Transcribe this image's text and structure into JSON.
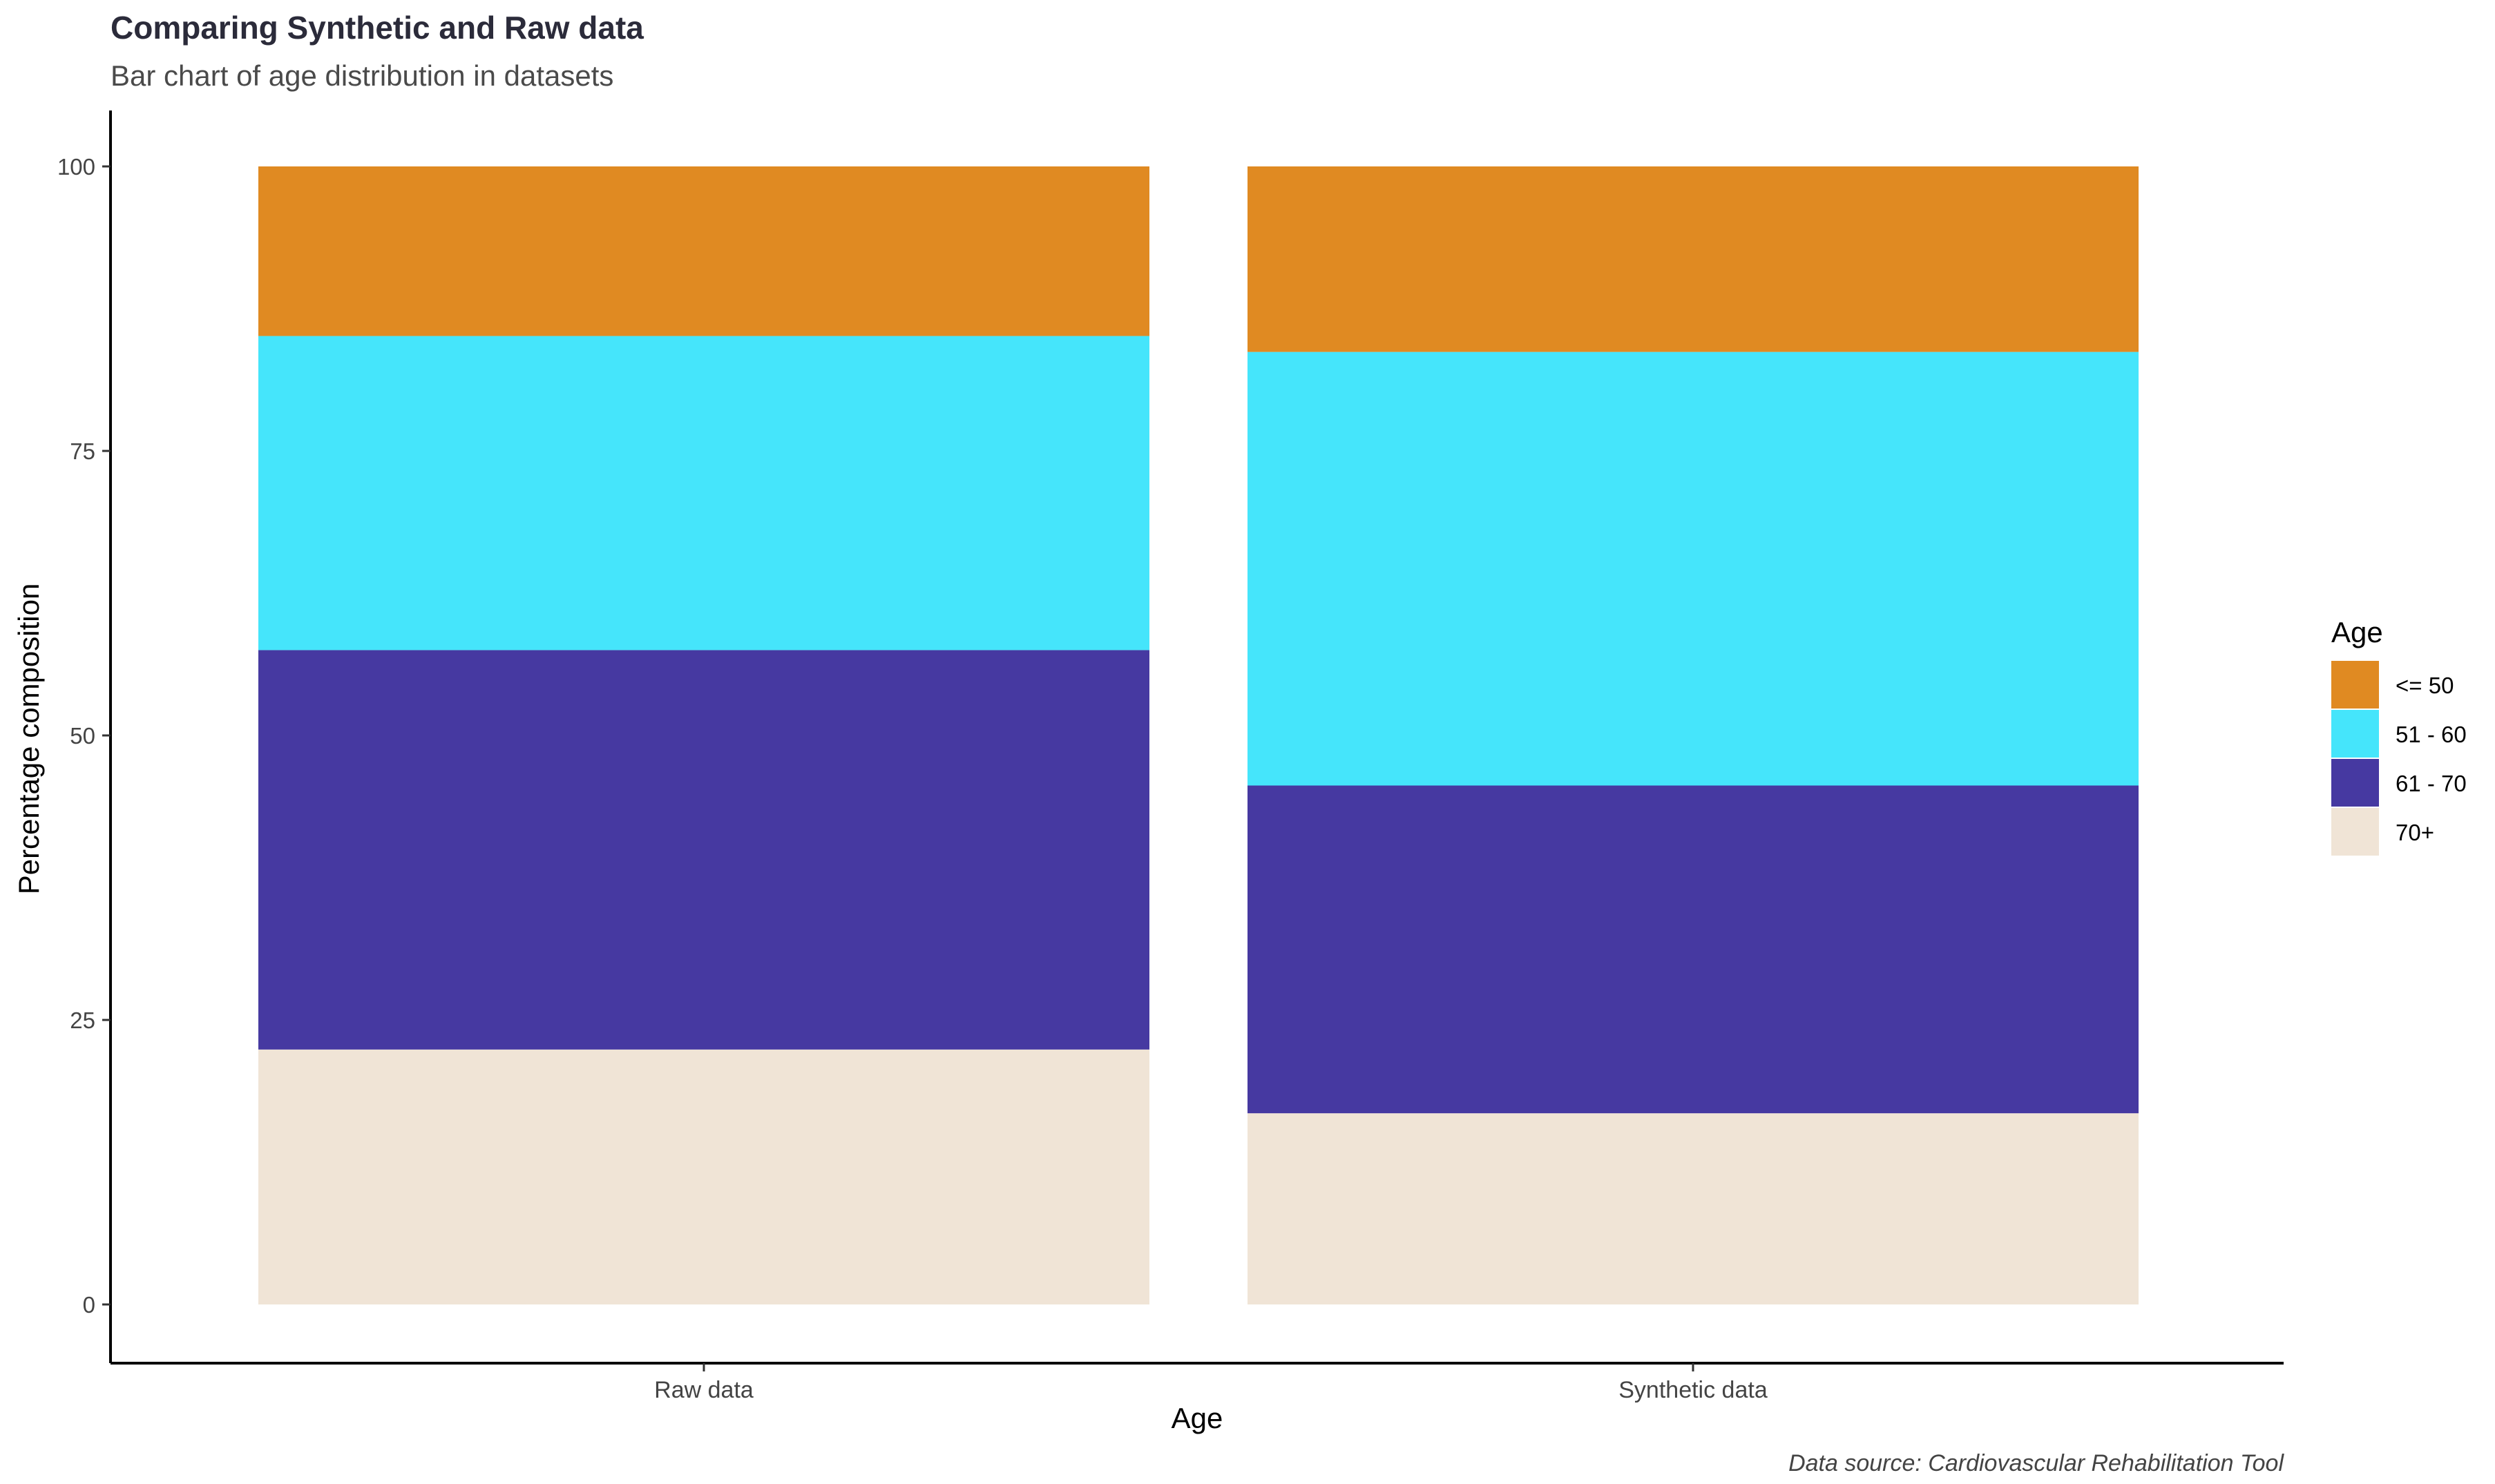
{
  "chart_data": {
    "type": "bar",
    "stacked": true,
    "title": "Comparing Synthetic and Raw data",
    "subtitle": "Bar chart of age distribution in datasets",
    "xlabel": "Age",
    "ylabel": "Percentage composition",
    "caption": "Data source: Cardiovascular Rehabilitation Tool",
    "categories": [
      "Raw data",
      "Synthetic data"
    ],
    "ylim": [
      0,
      100
    ],
    "yticks": [
      0,
      25,
      50,
      75,
      100
    ],
    "ytick_labels": [
      "0",
      "25",
      "50",
      "75",
      "100"
    ],
    "grid": false,
    "legend": {
      "title": "Age",
      "position": "right"
    },
    "series": [
      {
        "name": "70+",
        "color": "#F0E4D6",
        "values": [
          22.4,
          16.8
        ]
      },
      {
        "name": "61 - 70",
        "color": "#4639A1",
        "values": [
          35.1,
          28.8
        ]
      },
      {
        "name": "51 - 60",
        "color": "#45E5FB",
        "values": [
          27.6,
          38.1
        ]
      },
      {
        "name": "<= 50",
        "color": "#E08A22",
        "values": [
          14.9,
          16.3
        ]
      }
    ],
    "legend_order": [
      "<= 50",
      "51 - 60",
      "61 - 70",
      "70+"
    ]
  }
}
